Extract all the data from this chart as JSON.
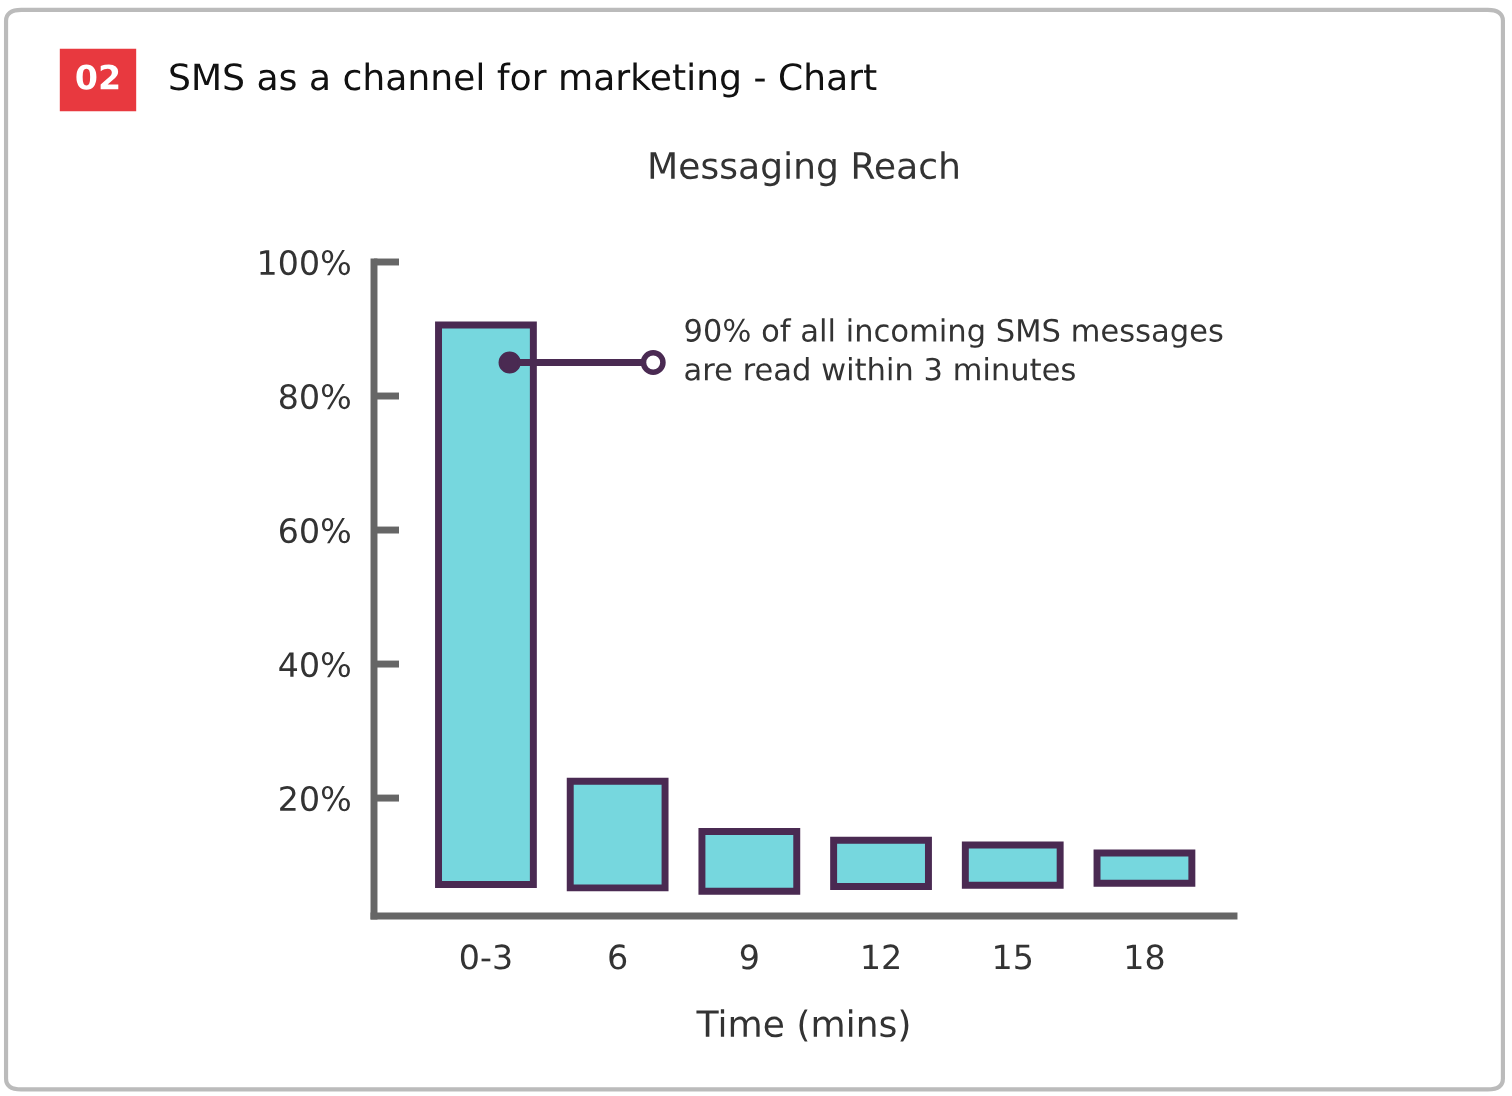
{
  "chart_data": {
    "type": "bar",
    "title": "SMS as a channel for marketing - Chart",
    "subtitle": "Messaging Reach",
    "xlabel": "Time (mins)",
    "categories": [
      "0-3",
      "6",
      "9",
      "12",
      "15",
      "18"
    ],
    "base": [
      7.1,
      6.6,
      6.1,
      6.8,
      7.0,
      7.3
    ],
    "values": [
      83.5,
      15.9,
      8.9,
      6.9,
      6.0,
      4.5
    ],
    "color": "#76d7de",
    "ylim": [
      2.4,
      100
    ],
    "yticks": [
      {
        "value": 20,
        "label": "20%"
      },
      {
        "value": 40,
        "label": "40%"
      },
      {
        "value": 60,
        "label": "60%"
      },
      {
        "value": 80,
        "label": "80%"
      },
      {
        "value": 100,
        "label": "100%"
      }
    ],
    "grid": false,
    "legend": false,
    "annotations": [
      "02",
      "90% of all incoming SMS messages\nare read within 3 minutes"
    ]
  }
}
